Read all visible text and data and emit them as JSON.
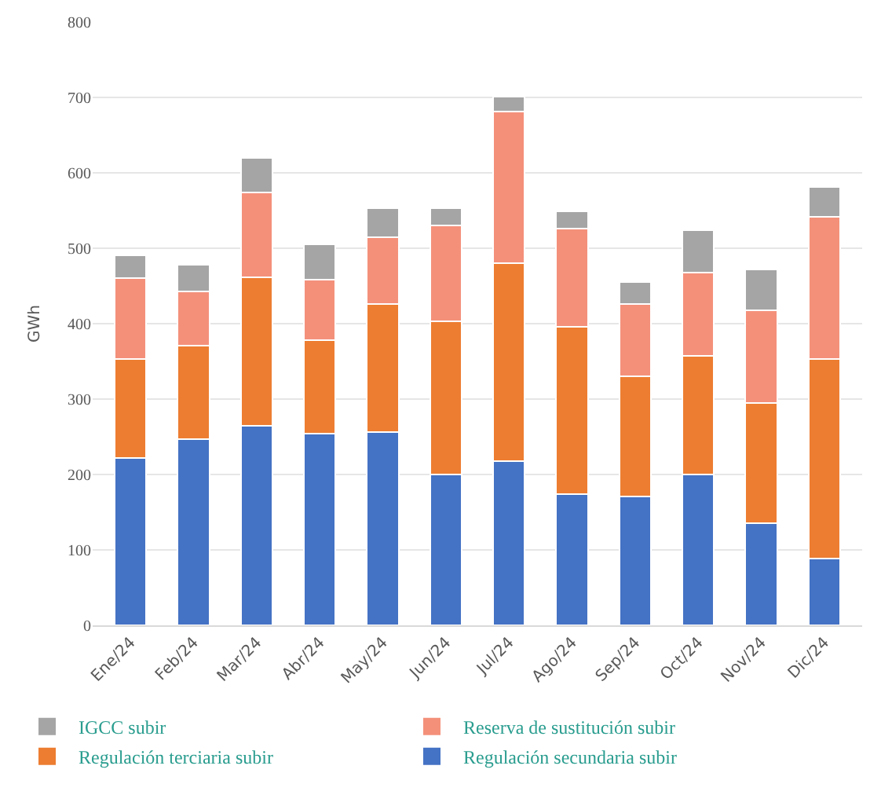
{
  "chart_data": {
    "type": "bar",
    "stacked": true,
    "ylabel": "GWh",
    "categories": [
      "Ene/24",
      "Feb/24",
      "Mar/24",
      "Abr/24",
      "May/24",
      "Jun/24",
      "Jul/24",
      "Ago/24",
      "Sep/24",
      "Oct/24",
      "Nov/24",
      "Dic/24"
    ],
    "series": [
      {
        "name": "Regulación secundaria subir",
        "color": "#4472c4",
        "values": [
          222,
          247,
          265,
          254,
          256,
          200,
          218,
          174,
          171,
          200,
          135,
          89
        ]
      },
      {
        "name": "Regulación terciaria subir",
        "color": "#ed7d31",
        "values": [
          131,
          124,
          196,
          124,
          170,
          203,
          262,
          222,
          159,
          157,
          160,
          264
        ]
      },
      {
        "name": "Reserva de sustitución subir",
        "color": "#f4907a",
        "values": [
          107,
          72,
          113,
          80,
          89,
          127,
          201,
          130,
          96,
          111,
          123,
          189
        ]
      },
      {
        "name": "IGCC subir",
        "color": "#a5a5a5",
        "values": [
          31,
          35,
          46,
          47,
          38,
          23,
          20,
          23,
          29,
          56,
          54,
          39
        ]
      }
    ],
    "ylim": [
      0,
      800
    ],
    "yticks": [
      0,
      100,
      200,
      300,
      400,
      500,
      600,
      700,
      800
    ],
    "grid": "y",
    "legend": "bottom"
  }
}
